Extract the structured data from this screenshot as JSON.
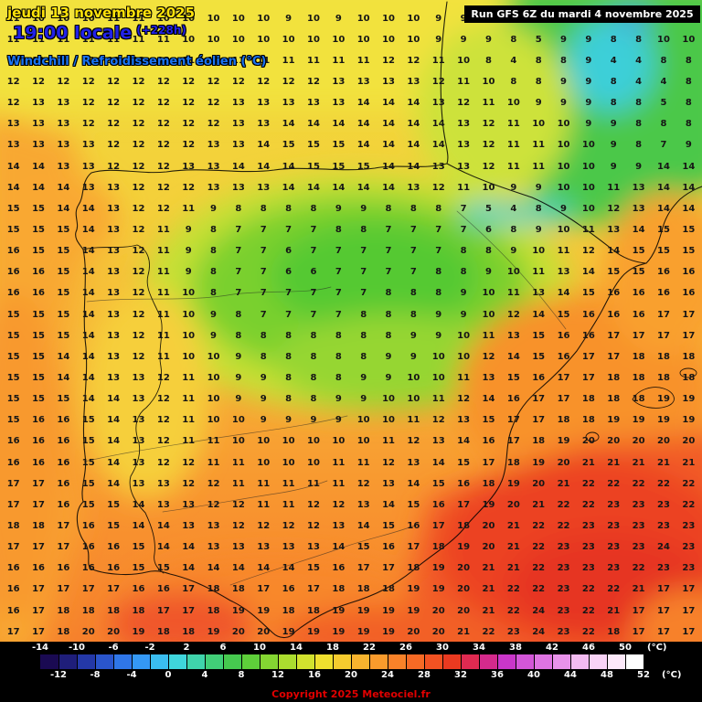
{
  "header": {
    "date": "jeudi 13 novembre 2025",
    "time": "19:00 locale",
    "offset": "(+228h)",
    "parameter": "Windchill / Refroidissement éolien (°C)",
    "run_info": "Run GFS 6Z du mardi 4 novembre 2025"
  },
  "footer": {
    "copyright": "Copyright 2025 Meteociel.fr"
  },
  "scale": {
    "unit": "(°C)",
    "top_labels": [
      -14,
      -10,
      -6,
      -2,
      2,
      6,
      10,
      14,
      18,
      22,
      26,
      30,
      34,
      38,
      42,
      46,
      50
    ],
    "bottom_labels": [
      -12,
      -8,
      -4,
      0,
      4,
      8,
      12,
      16,
      20,
      24,
      28,
      32,
      36,
      40,
      44,
      48,
      52
    ],
    "colors": [
      "#1a0a52",
      "#1f1e7a",
      "#2438a8",
      "#2a55cc",
      "#2f76e8",
      "#3498f5",
      "#3abdf0",
      "#3fd6dc",
      "#3fd4ab",
      "#41cf78",
      "#46c94f",
      "#5ecf3a",
      "#84d632",
      "#abdd2f",
      "#d2e22e",
      "#f0e02e",
      "#f6cb2e",
      "#f8b42e",
      "#f99b2c",
      "#f98229",
      "#f76a25",
      "#f35222",
      "#ea3a20",
      "#e02a51",
      "#d42a8c",
      "#c936c9",
      "#d356d8",
      "#de74e2",
      "#e892ea",
      "#f3bbf1",
      "#f8d2f6",
      "#fde9fa",
      "#ffffff"
    ]
  },
  "colors": {
    "date_yellow": "#ffe30a",
    "time_blue": "#2222e8",
    "param_blue": "#1b74f2",
    "copyright_red": "#e00000"
  },
  "map_grid": {
    "rows": [
      "11 10 10 10 11 11 10 10 10 10 10 9 10 9 10 10 10 9 9 8 8 9 5 5 8 9 8 5",
      "11 11 11 11 11 11 11 10 10 10 10 10 10 10 10 10 10 9 9 9 8 5 9 9 8 8 10 10",
      "11 11 12 12 12 12 12 11 11 11 11 11 11 11 11 12 12 11 10 8 4 8 8 9 4 4 8 8",
      "12 12 12 12 12 12 12 12 12 12 12 12 12 13 13 13 13 12 11 10 8 8 9 9 8 4 4 8",
      "12 13 13 12 12 12 12 12 12 13 13 13 13 13 14 14 14 13 12 11 10 9 9 9 8 8 5 8",
      "13 13 13 12 12 12 12 12 12 13 13 14 14 14 14 14 14 14 13 12 11 10 10 9 9 8 8 8",
      "13 13 13 13 12 12 12 12 13 13 14 15 15 15 14 14 14 14 13 12 11 11 10 10 9 8 7 9",
      "14 14 13 13 12 12 12 13 13 14 14 14 15 15 15 14 14 13 13 12 11 11 10 10 9 9 14 14",
      "14 14 14 13 13 12 12 12 13 13 13 14 14 14 14 14 13 12 11 10 9 9 10 10 11 13 14 14",
      "15 15 14 14 13 12 12 11 9 8 8 8 8 9 9 8 8 8 7 5 4 8 9 10 12 13 14 14",
      "15 15 15 14 13 12 11 9 8 7 7 7 7 8 8 7 7 7 7 6 8 9 10 11 13 14 15 15",
      "16 15 15 14 13 12 11 9 8 7 7 6 7 7 7 7 7 7 8 8 9 10 11 12 14 15 15 15",
      "16 16 15 14 13 12 11 9 8 7 7 6 6 7 7 7 7 8 8 9 10 11 13 14 15 15 16 16",
      "16 16 15 14 13 12 11 10 8 7 7 7 7 7 7 8 8 8 9 10 11 13 14 15 16 16 16 16",
      "15 15 15 14 13 12 11 10 9 8 7 7 7 7 8 8 8 9 9 10 12 14 15 16 16 16 17 17",
      "15 15 15 14 13 12 11 10 9 8 8 8 8 8 8 8 9 9 10 11 13 15 16 16 17 17 17 17",
      "15 15 14 14 13 12 11 10 10 9 8 8 8 8 8 9 9 10 10 12 14 15 16 17 17 18 18 18",
      "15 15 14 14 13 13 12 11 10 9 9 8 8 8 9 9 10 10 11 13 15 16 17 17 18 18 18 18",
      "15 15 15 14 14 13 12 11 10 9 9 8 8 9 9 10 10 11 12 14 16 17 17 18 18 18 19 19",
      "15 16 16 15 14 13 12 11 10 10 9 9 9 9 10 10 11 12 13 15 17 17 18 18 19 19 19 19",
      "16 16 16 15 14 13 12 11 11 10 10 10 10 10 10 11 12 13 14 16 17 18 19 20 20 20 20 20",
      "16 16 16 15 14 13 12 12 11 11 10 10 10 11 11 12 13 14 15 17 18 19 20 21 21 21 21 21",
      "17 17 16 15 14 13 13 12 12 11 11 11 11 11 12 13 14 15 16 18 19 20 21 22 22 22 22 22",
      "17 17 16 15 15 14 13 13 12 12 11 11 12 12 13 14 15 16 17 19 20 21 22 22 23 23 23 22",
      "18 18 17 16 15 14 14 13 13 12 12 12 12 13 14 15 16 17 18 20 21 22 22 23 23 23 23 23",
      "17 17 17 16 16 15 14 14 13 13 13 13 13 14 15 16 17 18 19 20 21 22 23 23 23 23 24 23",
      "16 16 16 16 16 15 15 14 14 14 14 14 15 16 17 17 18 19 20 21 21 22 23 23 23 22 23 23",
      "16 17 17 17 17 16 16 17 18 18 17 16 17 18 18 18 19 19 20 21 22 22 23 22 22 21 17 17",
      "16 17 18 18 18 18 17 17 18 19 19 18 18 19 19 19 19 20 20 21 22 24 23 22 21 17 17 17",
      "17 17 18 20 20 19 18 18 19 20 20 19 19 19 19 19 20 20 21 22 23 24 23 22 18 17 17 17"
    ]
  }
}
